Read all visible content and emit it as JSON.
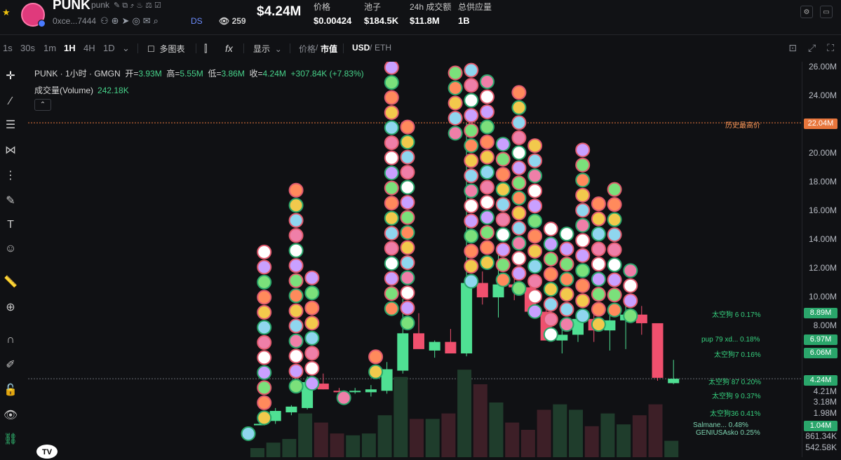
{
  "header": {
    "symbol": "PUNK",
    "symbol_sub": "punk",
    "address": "0xce...7444",
    "ds_label": "DS",
    "views": "259",
    "market_cap": "$4.24M",
    "stats": [
      {
        "label": "价格",
        "value": "$0.00424"
      },
      {
        "label": "池子",
        "value": "$184.5K"
      },
      {
        "label": "24h 成交额",
        "value": "$11.8M"
      },
      {
        "label": "总供应量",
        "value": "1B"
      }
    ]
  },
  "toolbar": {
    "timeframes": [
      "1s",
      "30s",
      "1m",
      "1H",
      "4H",
      "1D"
    ],
    "active_timeframe": "1H",
    "multi_chart": "多图表",
    "display": "显示",
    "price_label": "价格",
    "mcap_label": "市值",
    "usd_label": "USD",
    "eth_label": "ETH",
    "slash": "/"
  },
  "legend": {
    "title": "PUNK · 1小时 · GMGN",
    "open_label": "开=",
    "open": "3.93M",
    "high_label": "高=",
    "high": "5.55M",
    "low_label": "低=",
    "low": "3.86M",
    "close_label": "收=",
    "close": "4.24M",
    "change": "+307.84K (+7.83%)",
    "volume_label": "成交量(Volume)",
    "volume": "242.18K"
  },
  "y_ticks": [
    "26.00M",
    "24.00M",
    "22.04M",
    "20.00M",
    "18.00M",
    "16.00M",
    "14.00M",
    "12.00M",
    "10.00M",
    "8.89M",
    "8.00M",
    "6.97M",
    "6.06M",
    "4.24M",
    "4.21M",
    "3.18M",
    "1.98M",
    "1.04M",
    "861.34K",
    "542.58K"
  ],
  "price_tags": [
    {
      "label": "22.04M",
      "color": "#e8763c"
    },
    {
      "label": "8.89M",
      "color": "#2aa66b"
    },
    {
      "label": "6.97M",
      "color": "#2aa66b"
    },
    {
      "label": "6.06M",
      "color": "#2aa66b"
    },
    {
      "label": "4.24M",
      "color": "#2aa66b"
    },
    {
      "label": "1.04M",
      "color": "#2aa66b"
    }
  ],
  "ath_label": "历史最高价",
  "whales": [
    "太空狗 6 0.17%",
    "pup 79 xd... 0.18%",
    "太空狗7 0.16%",
    "太空狗 87 0.20%",
    "太空狗 9 0.37%",
    "太空狗36 0.41%",
    "Salmane... 0.48%",
    "GENIUSAsko 0.25%"
  ],
  "tv_logo": "TV",
  "chart_data": {
    "type": "candlestick",
    "title": "PUNK · 1小时 · GMGN",
    "y_unit": "market cap (USD)",
    "ylim": [
      0,
      26800000
    ],
    "candles": [
      {
        "o": 1.1,
        "h": 1.1,
        "l": 1.1,
        "c": 1.1
      },
      {
        "o": 1.3,
        "h": 2.2,
        "l": 1.1,
        "c": 2.0
      },
      {
        "o": 1.9,
        "h": 2.4,
        "l": 1.7,
        "c": 2.3
      },
      {
        "o": 2.2,
        "h": 4.4,
        "l": 2.1,
        "c": 4.0
      },
      {
        "o": 3.9,
        "h": 4.6,
        "l": 3.5,
        "c": 3.5
      },
      {
        "o": 3.4,
        "h": 3.6,
        "l": 3.0,
        "c": 3.3
      },
      {
        "o": 3.4,
        "h": 3.6,
        "l": 3.2,
        "c": 3.4
      },
      {
        "o": 3.3,
        "h": 3.8,
        "l": 3.0,
        "c": 3.5
      },
      {
        "o": 3.4,
        "h": 5.4,
        "l": 3.2,
        "c": 4.9
      },
      {
        "o": 4.8,
        "h": 9.8,
        "l": 4.6,
        "c": 7.4
      },
      {
        "o": 7.4,
        "h": 8.8,
        "l": 6.4,
        "c": 6.3
      },
      {
        "o": 6.2,
        "h": 6.9,
        "l": 5.7,
        "c": 6.8
      },
      {
        "o": 6.8,
        "h": 7.7,
        "l": 6.3,
        "c": 6.0
      },
      {
        "o": 6.0,
        "h": 22.0,
        "l": 5.8,
        "c": 10.9
      },
      {
        "o": 10.9,
        "h": 11.7,
        "l": 9.4,
        "c": 9.9
      },
      {
        "o": 9.9,
        "h": 13.0,
        "l": 8.5,
        "c": 10.8
      },
      {
        "o": 10.8,
        "h": 11.8,
        "l": 9.7,
        "c": 10.6
      },
      {
        "o": 10.6,
        "h": 11.2,
        "l": 9.2,
        "c": 8.9
      },
      {
        "o": 8.9,
        "h": 9.6,
        "l": 6.9,
        "c": 6.9
      },
      {
        "o": 6.9,
        "h": 8.0,
        "l": 6.0,
        "c": 7.3
      },
      {
        "o": 7.3,
        "h": 8.7,
        "l": 6.8,
        "c": 8.4
      },
      {
        "o": 8.4,
        "h": 9.3,
        "l": 6.8,
        "c": 7.6
      },
      {
        "o": 7.6,
        "h": 8.7,
        "l": 6.2,
        "c": 8.3
      },
      {
        "o": 8.3,
        "h": 9.7,
        "l": 6.3,
        "c": 8.7
      },
      {
        "o": 8.7,
        "h": 9.3,
        "l": 7.3,
        "c": 8.1
      },
      {
        "o": 8.1,
        "h": 8.1,
        "l": 4.1,
        "c": 4.3
      },
      {
        "o": 3.93,
        "h": 5.55,
        "l": 3.86,
        "c": 4.24
      }
    ],
    "volume": [
      0.5,
      0.8,
      1.0,
      2.4,
      1.9,
      1.3,
      1.2,
      1.3,
      2.3,
      4.4,
      2.1,
      2.1,
      2.4,
      4.8,
      4.0,
      3.0,
      1.9,
      1.5,
      2.6,
      2.9,
      2.6,
      1.7,
      2.4,
      1.8,
      2.3,
      2.9,
      0.9
    ],
    "ath": 22040000,
    "current": 4240000
  }
}
